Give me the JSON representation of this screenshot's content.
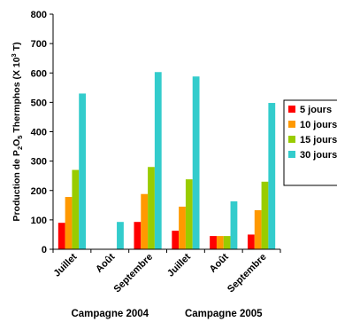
{
  "chart_data": {
    "type": "bar",
    "ylabel_parts": [
      "Production de P",
      "2",
      "O",
      "5",
      " Thermphos (X 10",
      "3",
      " T)"
    ],
    "ylim": [
      0,
      800
    ],
    "yticks": [
      "0",
      "100",
      "200",
      "300",
      "400",
      "500",
      "600",
      "700",
      "800"
    ],
    "grid": false,
    "legend_position": "right",
    "categories": [
      "Juillet",
      "Août",
      "Septembre",
      "Juillet",
      "Août",
      "Septembre"
    ],
    "groups": [
      {
        "label": "Campagne 2004",
        "categories": [
          0,
          1,
          2
        ]
      },
      {
        "label": "Campagne 2005",
        "categories": [
          3,
          4,
          5
        ]
      }
    ],
    "series": [
      {
        "name": "5 jours",
        "color": "#ff0000",
        "values": [
          90,
          0,
          93,
          63,
          45,
          50
        ]
      },
      {
        "name": "10 jours",
        "color": "#ff9900",
        "values": [
          178,
          0,
          188,
          145,
          45,
          133
        ]
      },
      {
        "name": "15 jours",
        "color": "#99cc00",
        "values": [
          270,
          0,
          280,
          238,
          45,
          230
        ]
      },
      {
        "name": "30 jours",
        "color": "#33cccc",
        "values": [
          530,
          93,
          603,
          588,
          163,
          498
        ]
      }
    ]
  }
}
